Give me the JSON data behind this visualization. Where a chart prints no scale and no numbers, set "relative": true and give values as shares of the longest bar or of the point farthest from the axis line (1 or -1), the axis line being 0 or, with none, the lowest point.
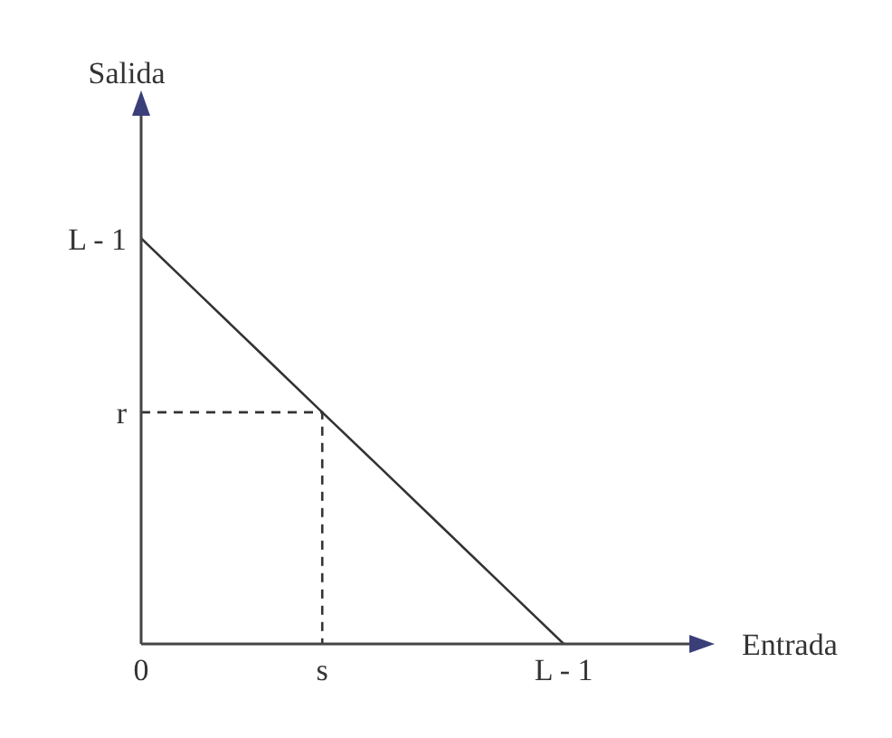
{
  "chart_data": {
    "type": "line",
    "xlabel": "Entrada",
    "ylabel": "Salida",
    "relative": true,
    "categories": [
      "0",
      null,
      null,
      "s",
      null,
      null,
      null,
      "L - 1",
      null,
      null
    ],
    "marker": "none",
    "series": [
      {
        "values": [
          1,
          0.857,
          0.714,
          0.571,
          0.429,
          0.286,
          0.143,
          0,
          null,
          null
        ],
        "color": "#333333",
        "line_style": "solid"
      },
      {
        "x": [
          "0",
          "s",
          "s"
        ],
        "values": [
          0.571,
          0.571,
          0
        ],
        "color": "#333333",
        "line_style": "dashed"
      }
    ],
    "annotations": [
      {
        "text": "L - 1",
        "x": "0",
        "y": 1
      },
      {
        "text": "r",
        "x": "0",
        "y": 0.571
      }
    ]
  }
}
